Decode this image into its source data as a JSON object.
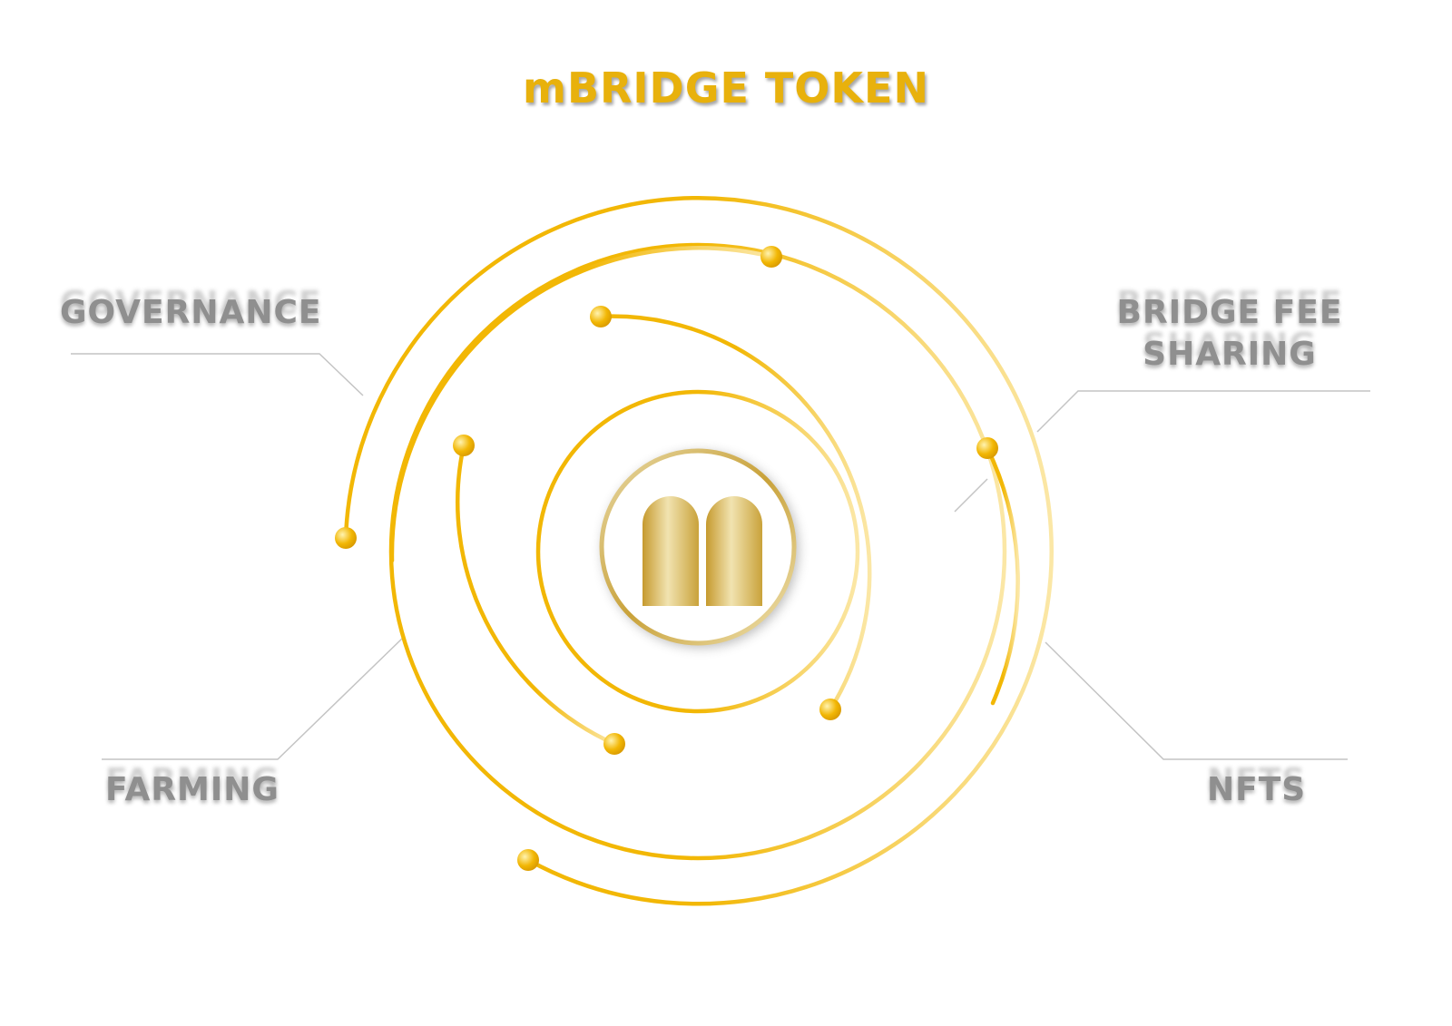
{
  "title": "mBRIDGE TOKEN",
  "labels": {
    "governance": "GOVERNANCE",
    "bridge_fee_line1": "BRIDGE FEE",
    "bridge_fee_line2": "SHARING",
    "farming": "FARMING",
    "nfts": "NFTS"
  },
  "center_logo": "mbridge-logo-icon",
  "colors": {
    "accent": "#f2b705",
    "label": "#8f8f8f",
    "connector": "#b8b8b8",
    "logo_gold": "#c9a23a"
  }
}
